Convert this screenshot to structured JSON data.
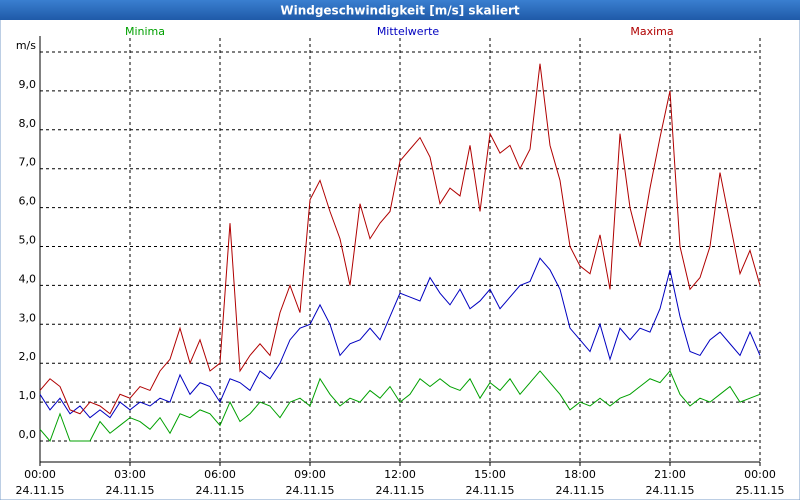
{
  "chart_data": {
    "type": "line",
    "title": "Windgeschwindigkeit [m/s] skaliert",
    "x": [
      0,
      20,
      40,
      60,
      80,
      100,
      120,
      140,
      160,
      180,
      200,
      220,
      240,
      260,
      280,
      300,
      320,
      340,
      360,
      380,
      400,
      420,
      440,
      460,
      480,
      500,
      520,
      540,
      560,
      580,
      600,
      620,
      640,
      660,
      680,
      700,
      720,
      740,
      760,
      780,
      800,
      820,
      840,
      860,
      880,
      900,
      920,
      940,
      960,
      980,
      1000,
      1020,
      1040,
      1060,
      1080,
      1100,
      1120,
      1140,
      1160,
      1180,
      1200,
      1220,
      1240,
      1260,
      1280,
      1300,
      1320,
      1340,
      1360,
      1380,
      1400,
      1420,
      1440
    ],
    "series": [
      {
        "name": "Minima",
        "color": "#00a000",
        "values": [
          0.3,
          0.0,
          0.7,
          0.0,
          0.0,
          0.0,
          0.5,
          0.2,
          0.4,
          0.6,
          0.5,
          0.3,
          0.6,
          0.2,
          0.7,
          0.6,
          0.8,
          0.7,
          0.4,
          1.0,
          0.5,
          0.7,
          1.0,
          0.9,
          0.6,
          1.0,
          1.1,
          0.9,
          1.6,
          1.2,
          0.9,
          1.1,
          1.0,
          1.3,
          1.1,
          1.4,
          1.0,
          1.2,
          1.6,
          1.4,
          1.6,
          1.4,
          1.3,
          1.6,
          1.1,
          1.5,
          1.3,
          1.6,
          1.2,
          1.5,
          1.8,
          1.5,
          1.2,
          0.8,
          1.0,
          0.9,
          1.1,
          0.9,
          1.1,
          1.2,
          1.4,
          1.6,
          1.5,
          1.8,
          1.2,
          0.9,
          1.1,
          1.0,
          1.2,
          1.4,
          1.0,
          1.1,
          1.2
        ]
      },
      {
        "name": "Mittelwerte",
        "color": "#0000c0",
        "values": [
          1.2,
          0.8,
          1.1,
          0.7,
          0.9,
          0.6,
          0.8,
          0.6,
          1.0,
          0.8,
          1.0,
          0.9,
          1.1,
          1.0,
          1.7,
          1.2,
          1.5,
          1.4,
          1.0,
          1.6,
          1.5,
          1.3,
          1.8,
          1.6,
          2.0,
          2.6,
          2.9,
          3.0,
          3.5,
          3.0,
          2.2,
          2.5,
          2.6,
          2.9,
          2.6,
          3.2,
          3.8,
          3.7,
          3.6,
          4.2,
          3.8,
          3.5,
          3.9,
          3.4,
          3.6,
          3.9,
          3.4,
          3.7,
          4.0,
          4.1,
          4.7,
          4.4,
          3.9,
          2.9,
          2.6,
          2.3,
          3.0,
          2.1,
          2.9,
          2.6,
          2.9,
          2.8,
          3.4,
          4.4,
          3.2,
          2.3,
          2.2,
          2.6,
          2.8,
          2.5,
          2.2,
          2.8,
          2.2
        ]
      },
      {
        "name": "Maxima",
        "color": "#b00000",
        "values": [
          1.3,
          1.6,
          1.4,
          0.8,
          0.7,
          1.0,
          0.9,
          0.7,
          1.2,
          1.1,
          1.4,
          1.3,
          1.8,
          2.1,
          2.9,
          2.0,
          2.6,
          1.8,
          2.0,
          5.6,
          1.8,
          2.2,
          2.5,
          2.2,
          3.3,
          4.0,
          3.3,
          6.2,
          6.7,
          5.9,
          5.2,
          4.0,
          6.1,
          5.2,
          5.6,
          5.9,
          7.2,
          7.5,
          7.8,
          7.3,
          6.1,
          6.5,
          6.3,
          7.6,
          5.9,
          7.9,
          7.4,
          7.6,
          7.0,
          7.5,
          9.7,
          7.6,
          6.7,
          5.0,
          4.5,
          4.3,
          5.3,
          3.9,
          7.9,
          6.0,
          5.0,
          6.5,
          7.8,
          9.0,
          5.0,
          3.9,
          4.2,
          5.0,
          6.9,
          5.6,
          4.3,
          4.9,
          4.0
        ]
      }
    ],
    "xlim": [
      0,
      1440
    ],
    "xticks": [
      {
        "value": 0,
        "label": "00:00 24.11.15"
      },
      {
        "value": 180,
        "label": "03:00 24.11.15"
      },
      {
        "value": 360,
        "label": "06:00 24.11.15"
      },
      {
        "value": 540,
        "label": "09:00 24.11.15"
      },
      {
        "value": 720,
        "label": "12:00 24.11.15"
      },
      {
        "value": 900,
        "label": "15:00 24.11.15"
      },
      {
        "value": 1080,
        "label": "18:00 24.11.15"
      },
      {
        "value": 1260,
        "label": "21:00 24.11.15"
      },
      {
        "value": 1440,
        "label": "00:00 25.11.15"
      }
    ],
    "ylim": [
      -0.54,
      10
    ],
    "yticks": [
      {
        "value": 0,
        "label": "0,0"
      },
      {
        "value": 1,
        "label": "1,0"
      },
      {
        "value": 2,
        "label": "2,0"
      },
      {
        "value": 3,
        "label": "3,0"
      },
      {
        "value": 4,
        "label": "4,0"
      },
      {
        "value": 5,
        "label": "5,0"
      },
      {
        "value": 6,
        "label": "6,0"
      },
      {
        "value": 7,
        "label": "7,0"
      },
      {
        "value": 8,
        "label": "8,0"
      },
      {
        "value": 9,
        "label": "9,0"
      },
      {
        "value": 10,
        "label": "m/s"
      }
    ],
    "grid": true
  }
}
